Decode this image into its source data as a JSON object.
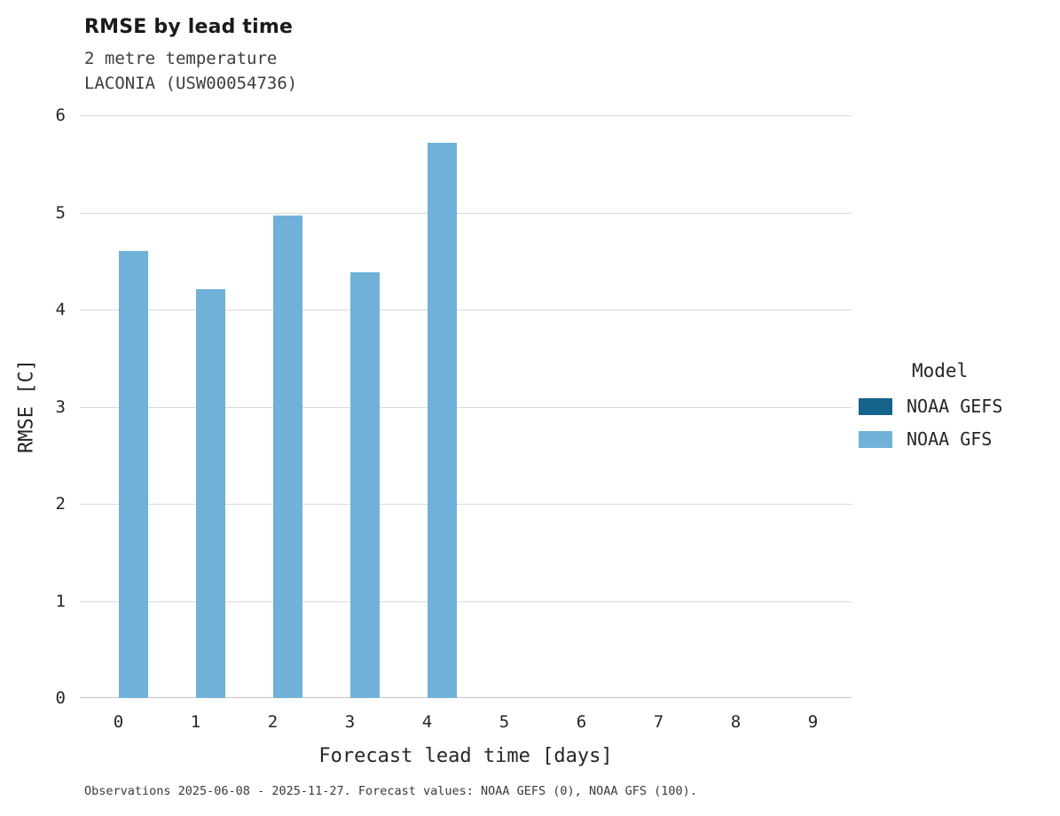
{
  "chart_data": {
    "type": "bar",
    "title": "RMSE by lead time",
    "subtitle_line1": "2 metre temperature",
    "subtitle_line2": "LACONIA (USW00054736)",
    "xlabel": "Forecast lead time [days]",
    "ylabel": "RMSE [C]",
    "categories": [
      0,
      1,
      2,
      3,
      4,
      5,
      6,
      7,
      8,
      9
    ],
    "yticks": [
      0,
      1,
      2,
      3,
      4,
      5,
      6
    ],
    "ylim": [
      0,
      6
    ],
    "grid": "horizontal",
    "legend_position": "right",
    "legend_title": "Model",
    "series": [
      {
        "name": "NOAA GEFS",
        "color": "#15638d",
        "values": [
          null,
          null,
          null,
          null,
          null,
          null,
          null,
          null,
          null,
          null
        ]
      },
      {
        "name": "NOAA GFS",
        "color": "#6fb1d8",
        "values": [
          4.6,
          4.21,
          4.97,
          4.38,
          5.72,
          null,
          null,
          null,
          null,
          null
        ]
      }
    ],
    "caption": "Observations 2025-06-08 - 2025-11-27. Forecast values: NOAA GEFS (0), NOAA GFS (100)."
  }
}
